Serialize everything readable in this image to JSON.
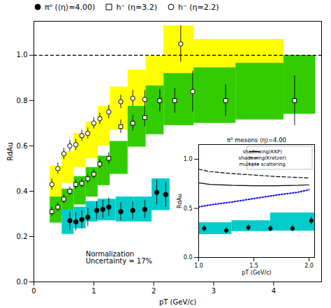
{
  "chart_data": [
    {
      "type": "scatter",
      "xlabel": "pT (GeV/c)",
      "ylabel": "RdAu",
      "xlim": [
        0,
        4.8
      ],
      "ylim": [
        0,
        1.15
      ],
      "xticks": [
        0,
        1,
        2,
        3,
        4
      ],
      "yticks": [
        {
          "value": 0,
          "label": "0.0"
        },
        0.2,
        0.4,
        0.6,
        0.8,
        {
          "value": 1.0,
          "label": "1.0"
        }
      ],
      "legend": "upper left",
      "annotations": [
        "Normalization\nUncertainty = 17%"
      ],
      "series": [
        {
          "type": "band",
          "color": "#FFFF00",
          "x_start": [
            0.27,
            0.47,
            0.67,
            0.87,
            1.07,
            1.27,
            1.57,
            1.87,
            2.17,
            2.67,
            3.37
          ],
          "x_end": [
            0.47,
            0.67,
            0.87,
            1.07,
            1.27,
            1.57,
            1.87,
            2.17,
            2.67,
            3.37,
            4.17
          ],
          "low": [
            0.375,
            0.435,
            0.505,
            0.545,
            0.6,
            0.67,
            0.735,
            0.785,
            0.875,
            0.855,
            0.855
          ],
          "high": [
            0.51,
            0.575,
            0.655,
            0.705,
            0.775,
            0.86,
            0.935,
            0.995,
            1.13,
            1.07,
            1.07
          ]
        },
        {
          "type": "band",
          "color": "#33CC00",
          "x_start": [
            0.27,
            0.47,
            0.67,
            0.87,
            1.07,
            1.27,
            1.57,
            1.87,
            2.17,
            2.67,
            3.37,
            4.17
          ],
          "x_end": [
            0.47,
            0.67,
            0.87,
            1.07,
            1.27,
            1.57,
            1.87,
            2.17,
            2.67,
            3.37,
            4.17,
            4.7
          ],
          "low": [
            0.26,
            0.29,
            0.34,
            0.375,
            0.425,
            0.475,
            0.595,
            0.65,
            0.69,
            0.7,
            0.715,
            0.74
          ],
          "high": [
            0.375,
            0.41,
            0.465,
            0.505,
            0.555,
            0.62,
            0.775,
            0.865,
            0.92,
            0.945,
            0.965,
            1.0
          ]
        },
        {
          "type": "band",
          "color": "#00CCCC",
          "x_start": [
            0.47,
            0.67,
            0.87,
            1.07,
            1.37,
            1.67,
            1.97
          ],
          "x_end": [
            0.67,
            0.87,
            1.07,
            1.37,
            1.67,
            1.97,
            2.27
          ],
          "low": [
            0.21,
            0.235,
            0.265,
            0.27,
            0.265,
            0.265,
            0.315
          ],
          "high": [
            0.32,
            0.33,
            0.355,
            0.365,
            0.375,
            0.375,
            0.455
          ]
        },
        {
          "type": "hline",
          "color": "#000000",
          "line_style": "dashed",
          "values": [
            1.0
          ]
        },
        {
          "name": "π⁰ (⟨η⟩=4.00)",
          "type": "scatter",
          "marker": "filled_circle",
          "color": "#000000",
          "x": [
            0.6,
            0.7,
            0.8,
            0.9,
            1.05,
            1.15,
            1.25,
            1.45,
            1.65,
            1.85,
            2.05,
            2.2
          ],
          "values": [
            0.27,
            0.265,
            0.275,
            0.285,
            0.315,
            0.32,
            0.33,
            0.31,
            0.315,
            0.32,
            0.395,
            0.385
          ],
          "errors": [
            0.04,
            0.04,
            0.04,
            0.04,
            0.04,
            0.04,
            0.04,
            0.04,
            0.04,
            0.04,
            0.055,
            0.055
          ]
        },
        {
          "name": "h⁻ (η=3.2)",
          "type": "scatter",
          "marker": "open_square",
          "color": "#000000",
          "x": [
            0.3,
            0.4,
            0.5,
            0.6,
            0.7,
            0.8,
            0.9,
            1.0,
            1.1,
            1.25,
            1.45,
            1.65,
            1.85,
            2.1,
            2.35,
            3.2,
            4.35
          ],
          "values": [
            0.31,
            0.33,
            0.365,
            0.4,
            0.43,
            0.435,
            0.455,
            0.475,
            0.52,
            0.545,
            0.685,
            0.7,
            0.725,
            0.8,
            0.8,
            0.8,
            0.8
          ],
          "errors": [
            0.02,
            0.02,
            0.02,
            0.02,
            0.02,
            0.02,
            0.02,
            0.02,
            0.02,
            0.025,
            0.03,
            0.035,
            0.04,
            0.05,
            0.055,
            0.07,
            0.11
          ]
        },
        {
          "name": "h⁻ (η=2.2)",
          "type": "scatter",
          "marker": "open_circle",
          "color": "#000000",
          "x": [
            0.3,
            0.4,
            0.5,
            0.6,
            0.7,
            0.8,
            0.9,
            1.0,
            1.1,
            1.25,
            1.45,
            1.65,
            1.85,
            2.1,
            2.45,
            2.65
          ],
          "values": [
            0.43,
            0.5,
            0.565,
            0.6,
            0.605,
            0.645,
            0.655,
            0.7,
            0.72,
            0.75,
            0.795,
            0.81,
            0.805,
            0.8,
            1.05,
            0.84
          ],
          "errors": [
            0.025,
            0.025,
            0.025,
            0.025,
            0.025,
            0.025,
            0.025,
            0.025,
            0.025,
            0.03,
            0.03,
            0.035,
            0.04,
            0.045,
            0.08,
            0.09
          ]
        }
      ]
    },
    {
      "type": "line",
      "title": "π⁰ mesons ⟨η⟩=4.00",
      "xlabel": "pT (GeV/c)",
      "ylabel": "RdAu",
      "xlim": [
        1.0,
        2.05
      ],
      "ylim": [
        0.0,
        1.15
      ],
      "xticks": [
        {
          "value": 1,
          "label": "1.0"
        },
        1.5,
        {
          "value": 2,
          "label": "2.0"
        }
      ],
      "yticks": [
        {
          "value": 0,
          "label": "0.0"
        },
        0.5,
        {
          "value": 1.0,
          "label": "1.0"
        }
      ],
      "legend": "upper right",
      "series": [
        {
          "type": "band",
          "color": "#00CCCC",
          "x_start": [
            1.0,
            1.3,
            1.65
          ],
          "x_end": [
            1.3,
            1.65,
            2.05
          ],
          "low": [
            0.235,
            0.265,
            0.27
          ],
          "high": [
            0.355,
            0.375,
            0.455
          ]
        },
        {
          "name": "shadowing(KKP)",
          "type": "line",
          "line_style": "solid",
          "color": "#000000",
          "x": [
            1.0,
            1.1,
            1.3,
            1.5,
            1.7,
            1.9,
            2.0
          ],
          "values": [
            0.76,
            0.745,
            0.735,
            0.73,
            0.73,
            0.735,
            0.74
          ]
        },
        {
          "name": "shadowing(Kretzer)",
          "type": "line",
          "line_style": "dashed",
          "color": "#000000",
          "x": [
            1.0,
            1.1,
            1.3,
            1.5,
            1.7,
            1.9,
            2.0
          ],
          "values": [
            0.9,
            0.875,
            0.855,
            0.84,
            0.825,
            0.815,
            0.81
          ]
        },
        {
          "name": "multiple scattering",
          "type": "line",
          "line_style": "dotted",
          "color": "#0000EE",
          "x": [
            1.0,
            1.1,
            1.3,
            1.5,
            1.7,
            1.9,
            2.0
          ],
          "values": [
            0.515,
            0.535,
            0.565,
            0.6,
            0.635,
            0.665,
            0.69
          ]
        },
        {
          "type": "scatter",
          "marker": "filled_circle",
          "color": "#000000",
          "x": [
            1.05,
            1.25,
            1.45,
            1.65,
            1.85,
            2.02
          ],
          "values": [
            0.295,
            0.275,
            0.305,
            0.295,
            0.295,
            0.375
          ],
          "errors": [
            0.03,
            0.03,
            0.03,
            0.03,
            0.03,
            0.04
          ]
        }
      ]
    }
  ]
}
